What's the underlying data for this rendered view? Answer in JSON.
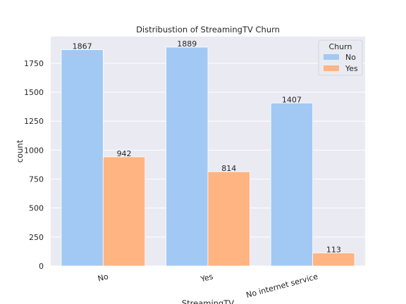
{
  "chart_data": {
    "type": "bar",
    "title": "Distribustion of StreamingTV Churn",
    "xlabel": "StreamingTV",
    "ylabel": "count",
    "categories": [
      "No",
      "Yes",
      "No internet service"
    ],
    "series": [
      {
        "name": "No",
        "values": [
          1867,
          1889,
          1407
        ],
        "color": "#a1c9f4"
      },
      {
        "name": "Yes",
        "values": [
          942,
          814,
          113
        ],
        "color": "#ffb482"
      }
    ],
    "ylim": [
      0,
      1980
    ],
    "yticks": [
      0,
      250,
      500,
      750,
      1000,
      1250,
      1500,
      1750
    ],
    "legend": {
      "title": "Churn",
      "position": "top-right"
    },
    "grid": true,
    "data_labels": true
  }
}
